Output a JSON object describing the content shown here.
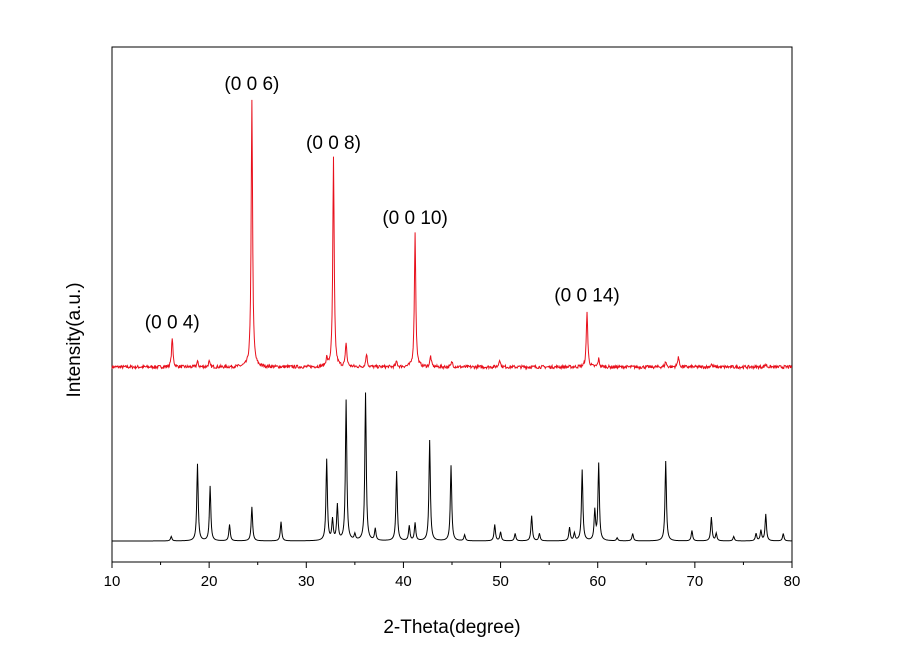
{
  "chart_data": {
    "type": "line",
    "xlabel": "2-Theta(degree)",
    "ylabel": "Intensity(a.u.)",
    "xlim": [
      10,
      80
    ],
    "x_ticks": [
      "10",
      "20",
      "30",
      "40",
      "50",
      "60",
      "70",
      "80"
    ],
    "y_ticks_labeled": false,
    "grid": false,
    "legend": "none",
    "series": [
      {
        "color": "#e8101c",
        "baseline": 0.0,
        "noise": 0.006,
        "peaks": [
          [
            16.2,
            0.11
          ],
          [
            18.8,
            0.02
          ],
          [
            20.0,
            0.02
          ],
          [
            24.4,
            1.0
          ],
          [
            32.1,
            0.03
          ],
          [
            32.8,
            0.78
          ],
          [
            34.1,
            0.09
          ],
          [
            36.2,
            0.05
          ],
          [
            39.3,
            0.02
          ],
          [
            41.2,
            0.5
          ],
          [
            42.8,
            0.04
          ],
          [
            45.0,
            0.02
          ],
          [
            49.9,
            0.03
          ],
          [
            58.9,
            0.21
          ],
          [
            60.1,
            0.03
          ],
          [
            67.0,
            0.02
          ],
          [
            68.3,
            0.04
          ],
          [
            71.7,
            0.01
          ],
          [
            77.3,
            0.01
          ]
        ]
      },
      {
        "color": "#000000",
        "baseline": 0.0,
        "noise": 0.0,
        "peaks": [
          [
            16.1,
            0.03
          ],
          [
            18.8,
            0.52
          ],
          [
            20.1,
            0.37
          ],
          [
            22.1,
            0.11
          ],
          [
            24.4,
            0.23
          ],
          [
            27.4,
            0.13
          ],
          [
            32.1,
            0.55
          ],
          [
            32.7,
            0.14
          ],
          [
            33.2,
            0.24
          ],
          [
            34.1,
            0.95
          ],
          [
            35.0,
            0.04
          ],
          [
            36.1,
            1.0
          ],
          [
            37.1,
            0.08
          ],
          [
            39.3,
            0.47
          ],
          [
            40.6,
            0.1
          ],
          [
            41.2,
            0.12
          ],
          [
            42.7,
            0.68
          ],
          [
            44.9,
            0.51
          ],
          [
            46.3,
            0.04
          ],
          [
            49.4,
            0.11
          ],
          [
            50.0,
            0.06
          ],
          [
            51.5,
            0.05
          ],
          [
            53.2,
            0.17
          ],
          [
            54.0,
            0.05
          ],
          [
            57.1,
            0.09
          ],
          [
            57.6,
            0.05
          ],
          [
            58.4,
            0.48
          ],
          [
            59.7,
            0.2
          ],
          [
            60.1,
            0.52
          ],
          [
            62.0,
            0.02
          ],
          [
            63.6,
            0.05
          ],
          [
            67.0,
            0.54
          ],
          [
            69.7,
            0.07
          ],
          [
            71.7,
            0.16
          ],
          [
            72.2,
            0.05
          ],
          [
            74.0,
            0.03
          ],
          [
            76.3,
            0.05
          ],
          [
            76.8,
            0.07
          ],
          [
            77.3,
            0.18
          ],
          [
            79.1,
            0.05
          ]
        ]
      }
    ],
    "annotations": [
      {
        "text": "(0 0 4)",
        "x": 16.2
      },
      {
        "text": "(0 0 6)",
        "x": 24.4
      },
      {
        "text": "(0 0 8)",
        "x": 32.8
      },
      {
        "text": "(0 0 10)",
        "x": 41.2
      },
      {
        "text": "(0 0 14)",
        "x": 58.9
      }
    ]
  }
}
